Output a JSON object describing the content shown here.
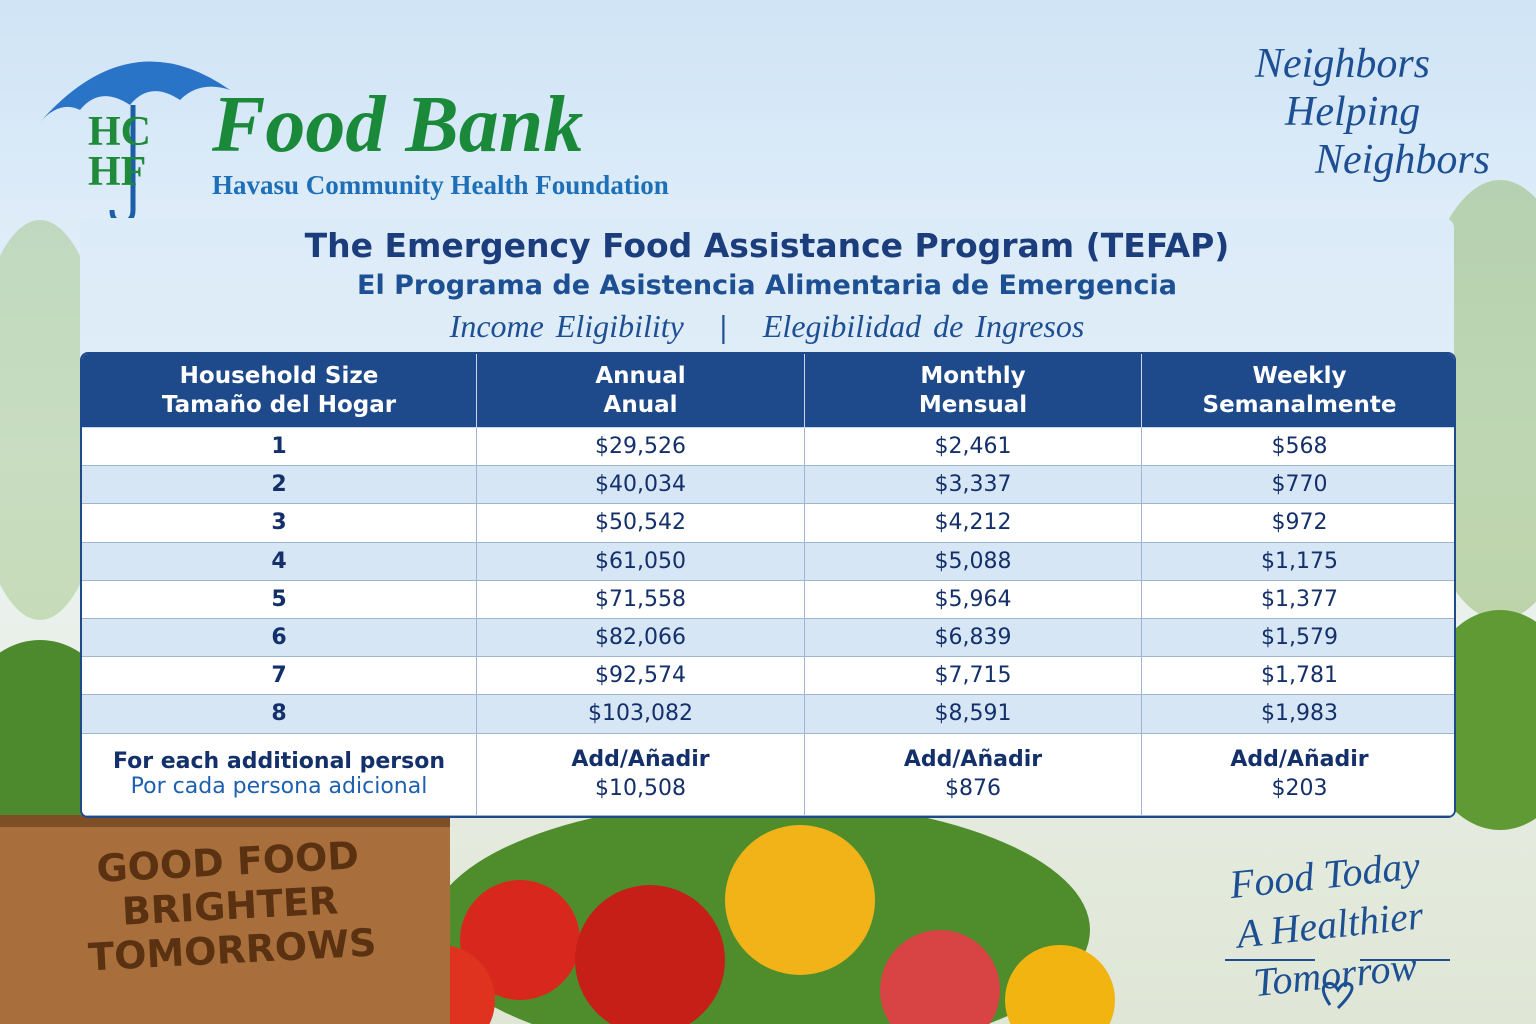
{
  "logo": {
    "letters": [
      "HC",
      "HF"
    ],
    "name": "Food Bank",
    "org": "Havasu Community Health Foundation"
  },
  "tagline": [
    "Neighbors",
    "Helping",
    "Neighbors"
  ],
  "title": "The Emergency Food Assistance Program (TEFAP)",
  "subtitle": "El Programa de Asistencia Alimentaria de Emergencia",
  "eligibility": [
    "Income Eligibility",
    "|",
    "Elegibilidad de Ingresos"
  ],
  "table": {
    "header": [
      [
        "Household Size",
        "Tamaño del Hogar"
      ],
      [
        "Annual",
        "Anual"
      ],
      [
        "Monthly",
        "Mensual"
      ],
      [
        "Weekly",
        "Semanalmente"
      ]
    ],
    "rows": [
      [
        "1",
        "$29,526",
        "$2,461",
        "$568"
      ],
      [
        "2",
        "$40,034",
        "$3,337",
        "$770"
      ],
      [
        "3",
        "$50,542",
        "$4,212",
        "$972"
      ],
      [
        "4",
        "$61,050",
        "$5,088",
        "$1,175"
      ],
      [
        "5",
        "$71,558",
        "$5,964",
        "$1,377"
      ],
      [
        "6",
        "$82,066",
        "$6,839",
        "$1,579"
      ],
      [
        "7",
        "$92,574",
        "$7,715",
        "$1,781"
      ],
      [
        "8",
        "$103,082",
        "$8,591",
        "$1,983"
      ]
    ],
    "footer": {
      "label": [
        "For each additional person",
        "Por cada persona adicional"
      ],
      "cells": [
        [
          "Add/Añadir",
          "$10,508"
        ],
        [
          "Add/Añadir",
          "$876"
        ],
        [
          "Add/Añadir",
          "$203"
        ]
      ]
    }
  },
  "crate": [
    "GOOD FOOD",
    "BRIGHTER",
    "TOMORROWS"
  ],
  "slogan": [
    "Food Today",
    "A Healthier Tomorrow"
  ]
}
